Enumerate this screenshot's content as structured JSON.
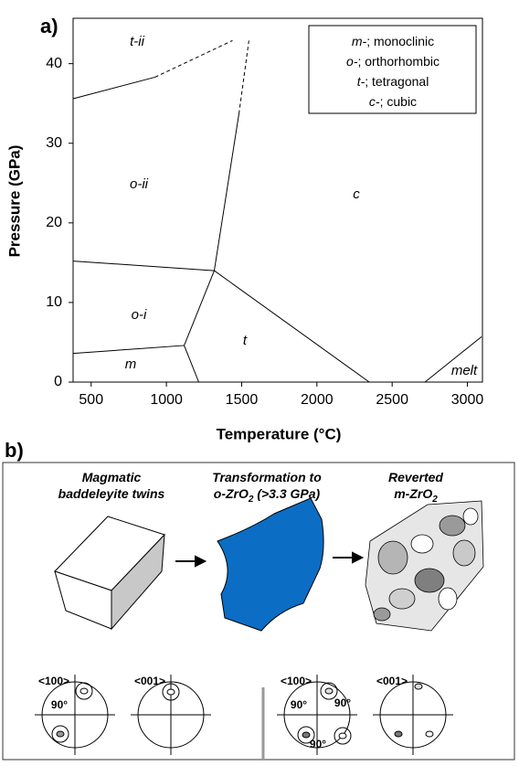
{
  "chart_data": {
    "type": "phase_diagram",
    "panel_label": "a)",
    "x_label": "Temperature (°C)",
    "y_label": "Pressure (GPa)",
    "xlim": [
      380,
      3100
    ],
    "ylim": [
      0,
      45.7
    ],
    "xticks": [
      500,
      1000,
      1500,
      2000,
      2500,
      3000
    ],
    "yticks": [
      0,
      10,
      20,
      30,
      40
    ],
    "boundaries": [
      {
        "x": [
          380,
          924
        ],
        "y": [
          35.6,
          38.3
        ],
        "dashed": false
      },
      {
        "x": [
          924,
          1439
        ],
        "y": [
          38.3,
          42.9
        ],
        "dashed": true
      },
      {
        "x": [
          1318,
          1482
        ],
        "y": [
          14.0,
          33.7
        ],
        "dashed": false
      },
      {
        "x": [
          1482,
          1548
        ],
        "y": [
          33.7,
          42.9
        ],
        "dashed": true
      },
      {
        "x": [
          380,
          1318
        ],
        "y": [
          15.2,
          14.0
        ],
        "dashed": false
      },
      {
        "x": [
          1318,
          1118,
          1215
        ],
        "y": [
          14.0,
          4.6,
          0
        ],
        "dashed": false
      },
      {
        "x": [
          380,
          1118
        ],
        "y": [
          3.6,
          4.6
        ],
        "dashed": false
      },
      {
        "x": [
          1318,
          2348
        ],
        "y": [
          14.0,
          0
        ],
        "dashed": false
      },
      {
        "x": [
          2718,
          3094
        ],
        "y": [
          0,
          5.7
        ],
        "dashed": false
      }
    ],
    "region_labels": [
      "t-ii",
      "o-ii",
      "c",
      "o-i",
      "t",
      "m",
      "melt"
    ],
    "legend": [
      {
        "abbr": "m-",
        "name": "; monoclinic"
      },
      {
        "abbr": "o-",
        "name": "; orthorhombic"
      },
      {
        "abbr": "t-",
        "name": "; tetragonal"
      },
      {
        "abbr": "c-",
        "name": "; cubic"
      }
    ]
  },
  "panel_b": {
    "label": "b)",
    "steps": [
      {
        "lines": [
          [
            "Magmatic"
          ],
          [
            "baddeleyite twins"
          ]
        ]
      },
      {
        "lines": [
          [
            "Transformation to"
          ],
          [
            "o-ZrO",
            "2",
            " (>3.3 GPa)"
          ]
        ]
      },
      {
        "lines": [
          [
            "Reverted"
          ],
          [
            "m-ZrO",
            "2"
          ]
        ]
      }
    ],
    "stereonets": [
      {
        "label": "<100>",
        "angles": [
          "90°"
        ]
      },
      {
        "label": "<001>",
        "angles": []
      },
      {
        "label": "<100>",
        "angles": [
          "90°",
          "90°",
          "90°"
        ]
      },
      {
        "label": "<001>",
        "angles": []
      }
    ]
  }
}
